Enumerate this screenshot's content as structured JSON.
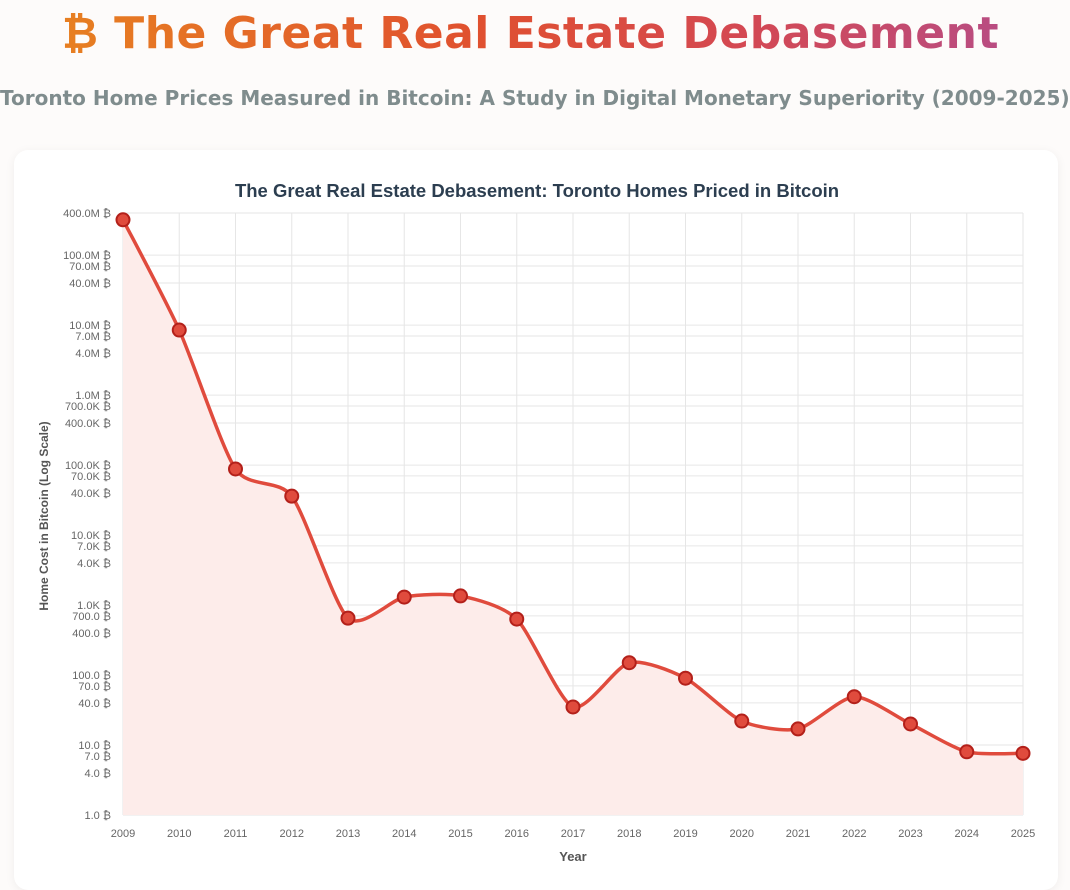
{
  "header": {
    "title": "₿ The Great Real Estate Debasement",
    "subtitle": "Toronto Home Prices Measured in Bitcoin: A Study in Digital Monetary Superiority (2009-2025)"
  },
  "chart_data": {
    "type": "line",
    "title": "The Great Real Estate Debasement: Toronto Homes Priced in Bitcoin",
    "xlabel": "Year",
    "ylabel": "Home Cost in Bitcoin (Log Scale)",
    "scale": "log",
    "ylim": [
      1,
      400000000
    ],
    "x": [
      "2009",
      "2010",
      "2011",
      "2012",
      "2013",
      "2014",
      "2015",
      "2016",
      "2017",
      "2018",
      "2019",
      "2020",
      "2021",
      "2022",
      "2023",
      "2024",
      "2025"
    ],
    "series": [
      {
        "name": "Home Cost in Bitcoin",
        "values": [
          320000000,
          8500000,
          88000,
          36000,
          650,
          1300,
          1350,
          630,
          35,
          150,
          90,
          22,
          17,
          49,
          20,
          8,
          7.6
        ],
        "color": "#e04b3d",
        "fill": "#fdecea"
      }
    ],
    "y_ticks": [
      {
        "value": 400000000,
        "label": "400.0M ₿"
      },
      {
        "value": 100000000,
        "label": "100.0M ₿"
      },
      {
        "value": 70000000,
        "label": "70.0M ₿"
      },
      {
        "value": 40000000,
        "label": "40.0M ₿"
      },
      {
        "value": 10000000,
        "label": "10.0M ₿"
      },
      {
        "value": 7000000,
        "label": "7.0M ₿"
      },
      {
        "value": 4000000,
        "label": "4.0M ₿"
      },
      {
        "value": 1000000,
        "label": "1.0M ₿"
      },
      {
        "value": 700000,
        "label": "700.0K ₿"
      },
      {
        "value": 400000,
        "label": "400.0K ₿"
      },
      {
        "value": 100000,
        "label": "100.0K ₿"
      },
      {
        "value": 70000,
        "label": "70.0K ₿"
      },
      {
        "value": 40000,
        "label": "40.0K ₿"
      },
      {
        "value": 10000,
        "label": "10.0K ₿"
      },
      {
        "value": 7000,
        "label": "7.0K ₿"
      },
      {
        "value": 4000,
        "label": "4.0K ₿"
      },
      {
        "value": 1000,
        "label": "1.0K ₿"
      },
      {
        "value": 700,
        "label": "700.0 ₿"
      },
      {
        "value": 400,
        "label": "400.0 ₿"
      },
      {
        "value": 100,
        "label": "100.0 ₿"
      },
      {
        "value": 70,
        "label": "70.0 ₿"
      },
      {
        "value": 40,
        "label": "40.0 ₿"
      },
      {
        "value": 10,
        "label": "10.0 ₿"
      },
      {
        "value": 7,
        "label": "7.0 ₿"
      },
      {
        "value": 4,
        "label": "4.0 ₿"
      },
      {
        "value": 1,
        "label": "1.0 ₿"
      }
    ],
    "grid": true,
    "legend": "none"
  }
}
